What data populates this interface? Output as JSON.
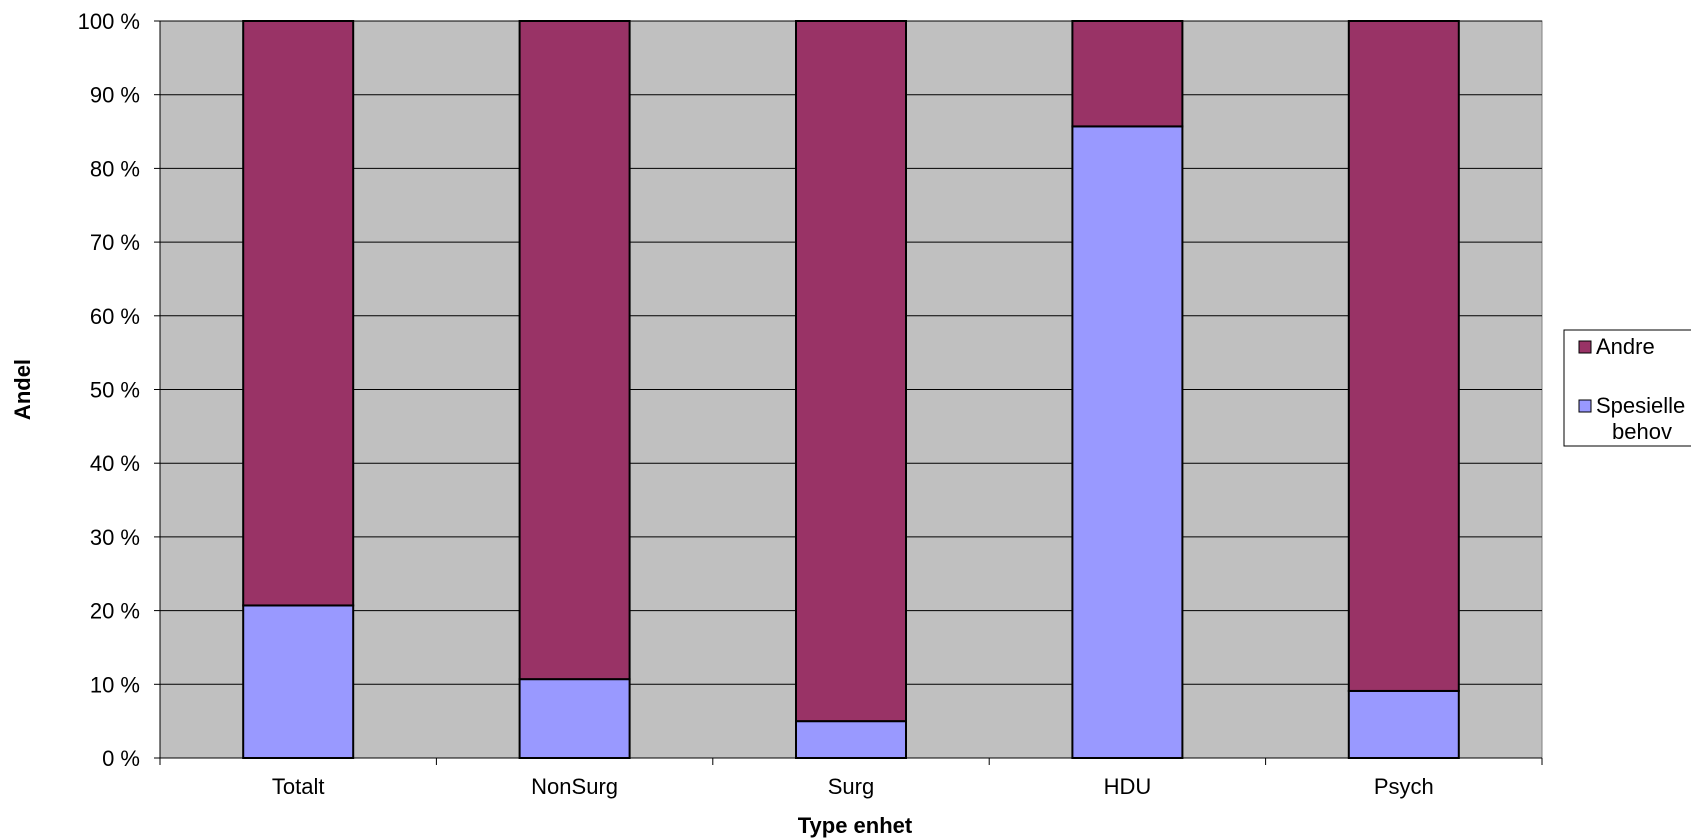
{
  "chart_data": {
    "type": "bar",
    "stacked": true,
    "percent_stacked": true,
    "categories": [
      "Totalt",
      "NonSurg",
      "Surg",
      "HDU",
      "Psych"
    ],
    "series": [
      {
        "name": "Spesielle behov",
        "values": [
          20.7,
          10.7,
          5.0,
          85.7,
          9.1
        ],
        "color": "#9999ff"
      },
      {
        "name": "Andre",
        "values": [
          79.3,
          89.3,
          95.0,
          14.3,
          90.9
        ],
        "color": "#993366"
      }
    ],
    "xlabel": "Type enhet",
    "ylabel": "Andel",
    "ylim": [
      0,
      100
    ],
    "yticks": [
      "0 %",
      "10 %",
      "20 %",
      "30 %",
      "40 %",
      "50 %",
      "60 %",
      "70 %",
      "80 %",
      "90 %",
      "100 %"
    ],
    "grid": true,
    "legend": "right",
    "legend_entries": [
      "Andre",
      "Spesielle behov"
    ],
    "plot_background": "#c0c0c0"
  }
}
